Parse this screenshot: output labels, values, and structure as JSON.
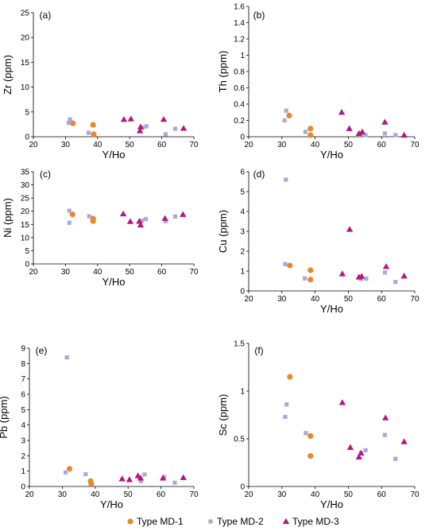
{
  "colors": {
    "MD-1": "#E8882A",
    "MD-2": "#A9A9DA",
    "MD-3": "#B5177F"
  },
  "legend": [
    {
      "series": "MD-1",
      "label": "Type MD-1",
      "marker": "circle"
    },
    {
      "series": "MD-2",
      "label": "Type MD-2",
      "marker": "square"
    },
    {
      "series": "MD-3",
      "label": "Type MD-3",
      "marker": "triangle"
    }
  ],
  "chart_data": [
    {
      "type": "scatter",
      "panel": "(a)",
      "xlabel": "Y/Ho",
      "ylabel": "Zr (ppm)",
      "xlim": [
        20,
        70
      ],
      "ylim": [
        0,
        25
      ],
      "xticks": [
        "20",
        "30",
        "40",
        "50",
        "60",
        "70"
      ],
      "yticks": [
        "0",
        "5",
        "10",
        "15",
        "20",
        "25"
      ],
      "series": [
        {
          "name": "Type MD-1",
          "points": [
            [
              32.3,
              2.7
            ],
            [
              38.6,
              2.4
            ],
            [
              38.8,
              0.5
            ]
          ]
        },
        {
          "name": "Type MD-2",
          "points": [
            [
              31.4,
              3.5
            ],
            [
              31.0,
              2.8
            ],
            [
              37.2,
              0.8
            ],
            [
              54.0,
              1.8
            ],
            [
              55.2,
              2.1
            ],
            [
              61.2,
              0.5
            ],
            [
              64.2,
              1.6
            ]
          ]
        },
        {
          "name": "Type MD-3",
          "points": [
            [
              48.2,
              3.5
            ],
            [
              50.4,
              3.6
            ],
            [
              53.2,
              1.2
            ],
            [
              53.4,
              2.0
            ],
            [
              60.6,
              3.5
            ],
            [
              66.8,
              1.7
            ]
          ]
        }
      ]
    },
    {
      "type": "scatter",
      "panel": "(b)",
      "xlabel": "Y/Ho",
      "ylabel": "Th (ppm)",
      "xlim": [
        20,
        70
      ],
      "ylim": [
        0,
        1.6
      ],
      "xticks": [
        "20",
        "30",
        "40",
        "50",
        "60",
        "70"
      ],
      "yticks": [
        "0",
        "0.2",
        "0.4",
        "0.6",
        "0.8",
        "1",
        "1.2",
        "1.4",
        "1.6"
      ],
      "series": [
        {
          "name": "Type MD-1",
          "points": [
            [
              32.2,
              0.26
            ],
            [
              38.6,
              0.1
            ],
            [
              38.6,
              0.02
            ]
          ]
        },
        {
          "name": "Type MD-2",
          "points": [
            [
              31.3,
              0.32
            ],
            [
              30.8,
              0.2
            ],
            [
              37.1,
              0.06
            ],
            [
              53.8,
              0.04
            ],
            [
              55.2,
              0.02
            ],
            [
              61.0,
              0.04
            ],
            [
              64.2,
              0.02
            ]
          ]
        },
        {
          "name": "Type MD-3",
          "points": [
            [
              48.0,
              0.3
            ],
            [
              50.3,
              0.1
            ],
            [
              53.2,
              0.04
            ],
            [
              54.2,
              0.06
            ],
            [
              61.0,
              0.18
            ],
            [
              66.8,
              0.02
            ]
          ]
        }
      ]
    },
    {
      "type": "scatter",
      "panel": "(c)",
      "xlabel": "Y/Ho",
      "ylabel": "Ni (ppm)",
      "xlim": [
        20,
        70
      ],
      "ylim": [
        0,
        35
      ],
      "xticks": [
        "20",
        "30",
        "40",
        "50",
        "60",
        "70"
      ],
      "yticks": [
        "0",
        "5",
        "10",
        "15",
        "20",
        "25",
        "30",
        "35"
      ],
      "series": [
        {
          "name": "Type MD-1",
          "points": [
            [
              32.2,
              18.8
            ],
            [
              38.6,
              17.2
            ],
            [
              38.6,
              16.3
            ]
          ]
        },
        {
          "name": "Type MD-2",
          "points": [
            [
              31.2,
              20.2
            ],
            [
              31.2,
              15.6
            ],
            [
              37.4,
              18.1
            ],
            [
              53.8,
              16.4
            ],
            [
              55.0,
              17.0
            ],
            [
              61.2,
              16.2
            ],
            [
              64.2,
              18.0
            ]
          ]
        },
        {
          "name": "Type MD-3",
          "points": [
            [
              48.0,
              19.0
            ],
            [
              50.2,
              16.1
            ],
            [
              53.0,
              16.2
            ],
            [
              53.4,
              14.8
            ],
            [
              61.0,
              17.3
            ],
            [
              66.6,
              18.8
            ]
          ]
        }
      ]
    },
    {
      "type": "scatter",
      "panel": "(d)",
      "xlabel": "Y/Ho",
      "ylabel": "Cu (ppm)",
      "xlim": [
        20,
        70
      ],
      "ylim": [
        0,
        6
      ],
      "xticks": [
        "20",
        "30",
        "40",
        "50",
        "60",
        "70"
      ],
      "yticks": [
        "0",
        "1",
        "2",
        "3",
        "4",
        "5",
        "6"
      ],
      "series": [
        {
          "name": "Type MD-1",
          "points": [
            [
              32.4,
              1.28
            ],
            [
              38.6,
              1.04
            ],
            [
              38.6,
              0.57
            ]
          ]
        },
        {
          "name": "Type MD-2",
          "points": [
            [
              31.2,
              5.6
            ],
            [
              31.0,
              1.35
            ],
            [
              36.9,
              0.63
            ],
            [
              53.8,
              0.6
            ],
            [
              55.4,
              0.62
            ],
            [
              61.0,
              0.93
            ],
            [
              64.2,
              0.45
            ]
          ]
        },
        {
          "name": "Type MD-3",
          "points": [
            [
              48.2,
              0.86
            ],
            [
              50.4,
              3.1
            ],
            [
              53.2,
              0.7
            ],
            [
              54.0,
              0.74
            ],
            [
              61.4,
              1.23
            ],
            [
              66.8,
              0.75
            ]
          ]
        }
      ]
    },
    {
      "type": "scatter",
      "panel": "(e)",
      "xlabel": "Y/Ho",
      "ylabel": "Pb (ppm)",
      "xlim": [
        20,
        70
      ],
      "ylim": [
        0,
        9
      ],
      "xticks": [
        "20",
        "30",
        "40",
        "50",
        "60",
        "70"
      ],
      "yticks": [
        "0",
        "1",
        "2",
        "3",
        "4",
        "5",
        "6",
        "7",
        "8",
        "9"
      ],
      "series": [
        {
          "name": "Type MD-1",
          "points": [
            [
              32.2,
              1.15
            ],
            [
              38.6,
              0.35
            ],
            [
              38.8,
              0.18
            ]
          ]
        },
        {
          "name": "Type MD-2",
          "points": [
            [
              31.4,
              8.4
            ],
            [
              31.0,
              0.92
            ],
            [
              37.1,
              0.8
            ],
            [
              53.9,
              0.35
            ],
            [
              55.0,
              0.78
            ],
            [
              61.0,
              0.62
            ],
            [
              64.2,
              0.25
            ]
          ]
        },
        {
          "name": "Type MD-3",
          "points": [
            [
              48.2,
              0.5
            ],
            [
              50.4,
              0.45
            ],
            [
              53.0,
              0.7
            ],
            [
              53.8,
              0.55
            ],
            [
              60.6,
              0.55
            ],
            [
              66.8,
              0.58
            ]
          ]
        }
      ]
    },
    {
      "type": "scatter",
      "panel": "(f)",
      "xlabel": "Y/Ho",
      "ylabel": "Sc (ppm)",
      "xlim": [
        20,
        70
      ],
      "ylim": [
        0,
        1.5
      ],
      "xticks": [
        "20",
        "30",
        "40",
        "50",
        "60",
        "70"
      ],
      "yticks": [
        "0",
        "0.5",
        "1",
        "1.5"
      ],
      "series": [
        {
          "name": "Type MD-1",
          "points": [
            [
              32.4,
              1.15
            ],
            [
              38.6,
              0.53
            ],
            [
              38.6,
              0.32
            ]
          ]
        },
        {
          "name": "Type MD-2",
          "points": [
            [
              31.4,
              0.86
            ],
            [
              31.0,
              0.73
            ],
            [
              37.2,
              0.56
            ],
            [
              53.8,
              0.35
            ],
            [
              55.2,
              0.38
            ],
            [
              61.0,
              0.54
            ],
            [
              64.2,
              0.29
            ]
          ]
        },
        {
          "name": "Type MD-3",
          "points": [
            [
              48.2,
              0.88
            ],
            [
              50.6,
              0.41
            ],
            [
              53.2,
              0.31
            ],
            [
              53.8,
              0.35
            ],
            [
              61.2,
              0.72
            ],
            [
              66.8,
              0.47
            ]
          ]
        }
      ]
    }
  ]
}
